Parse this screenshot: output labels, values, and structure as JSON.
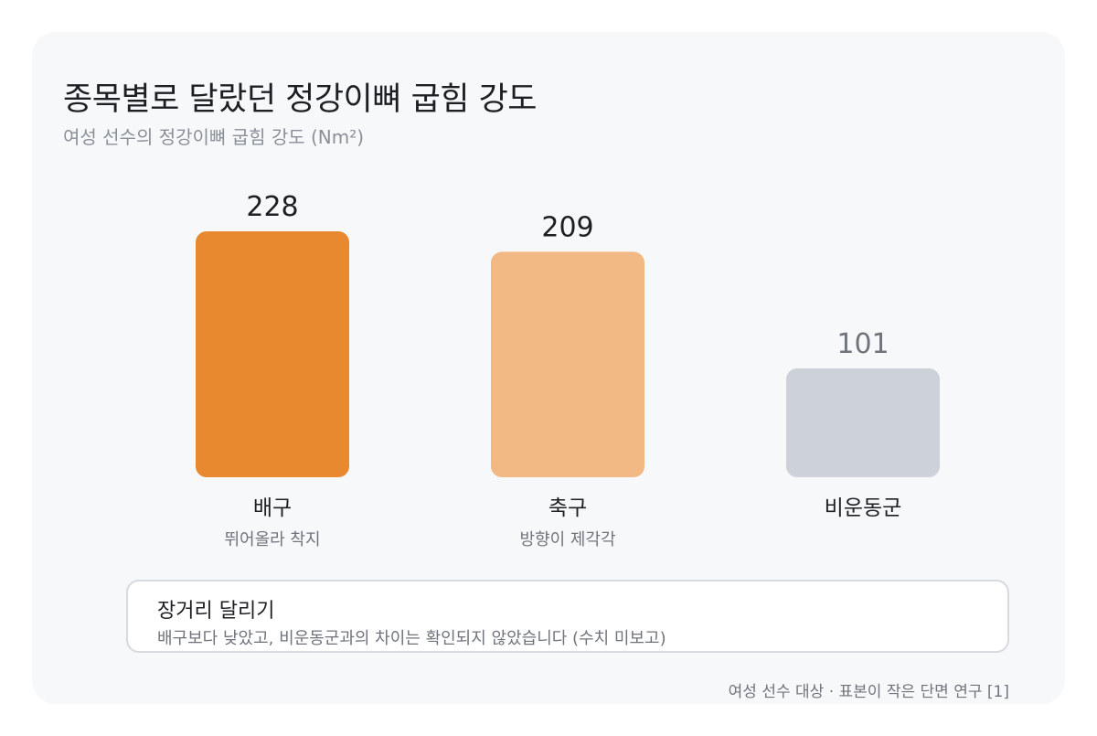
{
  "title": "종목별로 달랐던 정강이뼈 굽힘 강도",
  "subtitle": "여성 선수의 정강이뼈 굽힘 강도 (Nm²)",
  "chart_data": {
    "type": "bar",
    "title": "종목별로 달랐던 정강이뼈 굽힘 강도",
    "ylabel": "여성 선수의 정강이뼈 굽힘 강도 (Nm²)",
    "ylim": [
      0,
      228
    ],
    "grid": false,
    "categories": [
      "배구",
      "축구",
      "비운동군"
    ],
    "category_notes": [
      "뛰어올라 착지",
      "방향이 제각각",
      ""
    ],
    "values": [
      228,
      209,
      101
    ],
    "value_labels": [
      "228",
      "209",
      "101"
    ],
    "colors": [
      "#e8892f",
      "#f2b985",
      "#cdd2d9"
    ],
    "value_label_colors": [
      "#1d1f23",
      "#1d1f23",
      "#6f747c"
    ]
  },
  "note": {
    "title": "장거리 달리기",
    "body": "배구보다 낮았고, 비운동군과의 차이는 확인되지 않았습니다 (수치 미보고)"
  },
  "source": "여성 선수 대상 · 표본이 작은 단면 연구 [1]"
}
